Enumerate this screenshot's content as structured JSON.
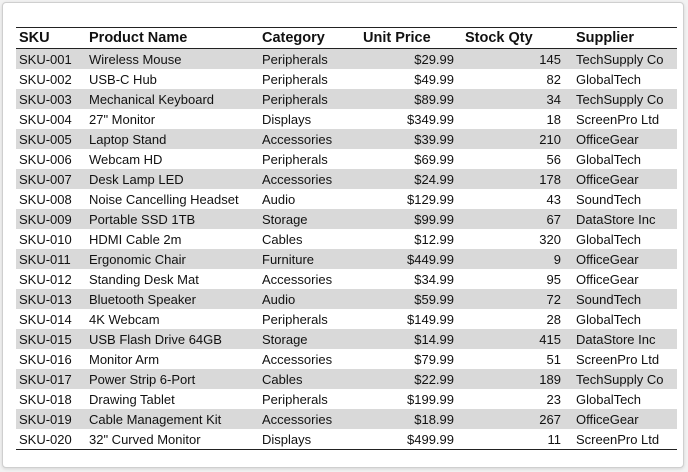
{
  "table": {
    "headers": [
      "SKU",
      "Product Name",
      "Category",
      "Unit Price",
      "Stock Qty",
      "Supplier"
    ],
    "rows": [
      [
        "SKU-001",
        "Wireless Mouse",
        "Peripherals",
        "$29.99",
        "145",
        "TechSupply Co"
      ],
      [
        "SKU-002",
        "USB-C Hub",
        "Peripherals",
        "$49.99",
        "82",
        "GlobalTech"
      ],
      [
        "SKU-003",
        "Mechanical Keyboard",
        "Peripherals",
        "$89.99",
        "34",
        "TechSupply Co"
      ],
      [
        "SKU-004",
        "27\" Monitor",
        "Displays",
        "$349.99",
        "18",
        "ScreenPro Ltd"
      ],
      [
        "SKU-005",
        "Laptop Stand",
        "Accessories",
        "$39.99",
        "210",
        "OfficeGear"
      ],
      [
        "SKU-006",
        "Webcam HD",
        "Peripherals",
        "$69.99",
        "56",
        "GlobalTech"
      ],
      [
        "SKU-007",
        "Desk Lamp LED",
        "Accessories",
        "$24.99",
        "178",
        "OfficeGear"
      ],
      [
        "SKU-008",
        "Noise Cancelling Headset",
        "Audio",
        "$129.99",
        "43",
        "SoundTech"
      ],
      [
        "SKU-009",
        "Portable SSD 1TB",
        "Storage",
        "$99.99",
        "67",
        "DataStore Inc"
      ],
      [
        "SKU-010",
        "HDMI Cable 2m",
        "Cables",
        "$12.99",
        "320",
        "GlobalTech"
      ],
      [
        "SKU-011",
        "Ergonomic Chair",
        "Furniture",
        "$449.99",
        "9",
        "OfficeGear"
      ],
      [
        "SKU-012",
        "Standing Desk Mat",
        "Accessories",
        "$34.99",
        "95",
        "OfficeGear"
      ],
      [
        "SKU-013",
        "Bluetooth Speaker",
        "Audio",
        "$59.99",
        "72",
        "SoundTech"
      ],
      [
        "SKU-014",
        "4K Webcam",
        "Peripherals",
        "$149.99",
        "28",
        "GlobalTech"
      ],
      [
        "SKU-015",
        "USB Flash Drive 64GB",
        "Storage",
        "$14.99",
        "415",
        "DataStore Inc"
      ],
      [
        "SKU-016",
        "Monitor Arm",
        "Accessories",
        "$79.99",
        "51",
        "ScreenPro Ltd"
      ],
      [
        "SKU-017",
        "Power Strip 6-Port",
        "Cables",
        "$22.99",
        "189",
        "TechSupply Co"
      ],
      [
        "SKU-018",
        "Drawing Tablet",
        "Peripherals",
        "$199.99",
        "23",
        "GlobalTech"
      ],
      [
        "SKU-019",
        "Cable Management Kit",
        "Accessories",
        "$18.99",
        "267",
        "OfficeGear"
      ],
      [
        "SKU-020",
        "32\" Curved Monitor",
        "Displays",
        "$499.99",
        "11",
        "ScreenPro Ltd"
      ]
    ]
  },
  "colors": {
    "stripe": "#d9d9d9",
    "rule": "#222222"
  }
}
